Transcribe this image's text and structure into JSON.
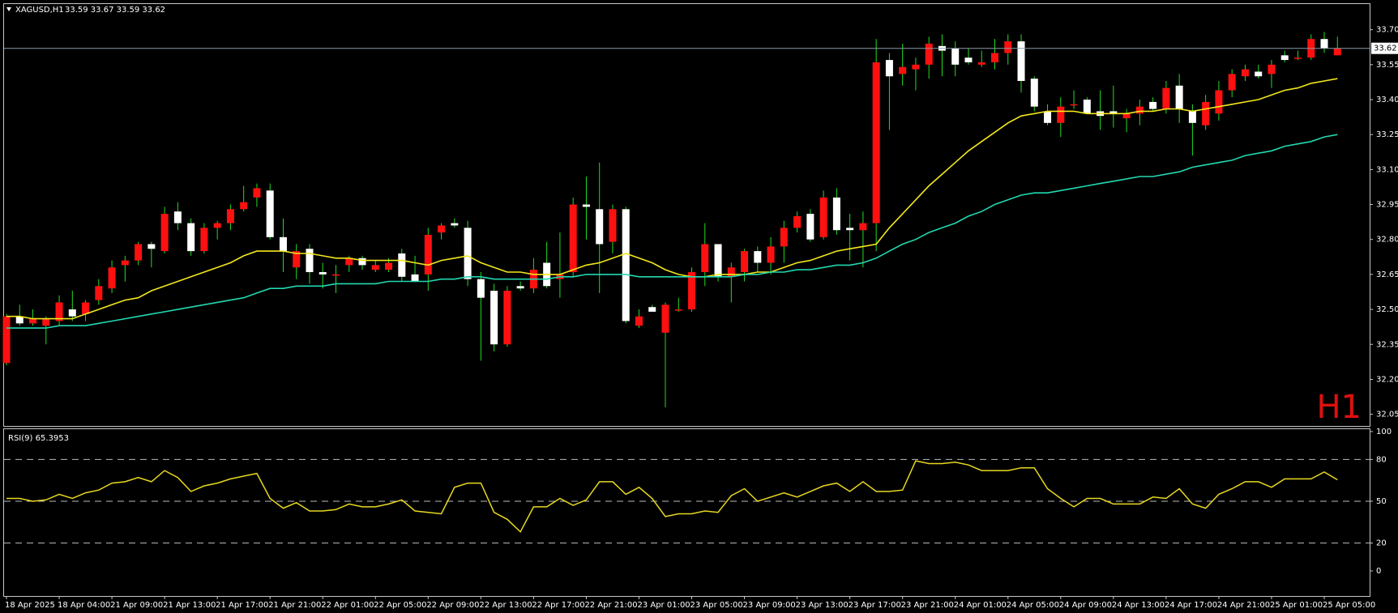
{
  "chart_data": [
    {
      "type": "candlestick",
      "title": "XAGUSD,H1",
      "ohlc": "33.59 33.67 33.59 33.62",
      "watermark": "H1",
      "categories": [
        "18 Apr 2025",
        null,
        null,
        null,
        "18 Apr 04:00",
        null,
        null,
        null,
        "21 Apr 09:00",
        null,
        null,
        null,
        "21 Apr 13:00",
        null,
        null,
        null,
        "21 Apr 17:00",
        null,
        null,
        null,
        "21 Apr 21:00",
        null,
        null,
        null,
        "22 Apr 01:00",
        null,
        null,
        null,
        "22 Apr 05:00",
        null,
        null,
        null,
        "22 Apr 09:00",
        null,
        null,
        null,
        "22 Apr 13:00",
        null,
        null,
        null,
        "22 Apr 17:00",
        null,
        null,
        null,
        "22 Apr 21:00",
        null,
        null,
        null,
        "23 Apr 01:00",
        null,
        null,
        null,
        "23 Apr 05:00",
        null,
        null,
        null,
        "23 Apr 09:00",
        null,
        null,
        null,
        "23 Apr 13:00",
        null,
        null,
        null,
        "23 Apr 17:00",
        null,
        null,
        null,
        "23 Apr 21:00",
        null,
        null,
        null,
        "24 Apr 01:00",
        null,
        null,
        null,
        "24 Apr 05:00",
        null,
        null,
        null,
        "24 Apr 09:00",
        null,
        null,
        null,
        "24 Apr 13:00",
        null,
        null,
        null,
        "24 Apr 17:00",
        null,
        null,
        null,
        "24 Apr 21:00",
        null,
        null,
        null,
        "25 Apr 01:00",
        null,
        null,
        null,
        "25 Apr 05:00",
        null
      ],
      "open": [
        32.27,
        32.47,
        32.44,
        32.43,
        32.45,
        32.5,
        32.48,
        32.54,
        32.59,
        32.69,
        32.71,
        32.78,
        32.75,
        32.92,
        32.87,
        32.75,
        32.85,
        32.87,
        32.93,
        32.98,
        33.01,
        32.81,
        32.68,
        32.76,
        32.66,
        32.65,
        32.69,
        32.72,
        32.67,
        32.67,
        32.74,
        32.65,
        32.65,
        32.83,
        32.87,
        32.85,
        32.63,
        32.58,
        32.35,
        32.6,
        32.59,
        32.7,
        32.63,
        32.66,
        32.95,
        32.93,
        32.79,
        32.93,
        32.43,
        32.51,
        32.4,
        32.5,
        32.5,
        32.66,
        32.78,
        32.64,
        32.66,
        32.75,
        32.7,
        32.77,
        32.85,
        32.91,
        32.81,
        32.98,
        32.85,
        32.84,
        32.87,
        33.57,
        33.51,
        33.53,
        33.55,
        33.63,
        33.62,
        33.58,
        33.55,
        33.56,
        33.6,
        33.65,
        33.49,
        33.35,
        33.3,
        33.38,
        33.4,
        33.35,
        33.35,
        33.32,
        33.34,
        33.39,
        33.36,
        33.46,
        33.35,
        33.29,
        33.34,
        33.44,
        33.5,
        33.52,
        33.51,
        33.59,
        33.58,
        33.58,
        33.66,
        33.59
      ],
      "high": [
        32.48,
        32.52,
        32.5,
        32.47,
        32.56,
        32.58,
        32.54,
        32.63,
        32.71,
        32.73,
        32.79,
        32.79,
        32.94,
        32.96,
        32.89,
        32.87,
        32.88,
        32.95,
        33.03,
        33.04,
        33.04,
        32.89,
        32.78,
        32.78,
        32.7,
        32.69,
        32.73,
        32.73,
        32.71,
        32.72,
        32.76,
        32.73,
        32.85,
        32.87,
        32.89,
        32.88,
        32.66,
        32.61,
        32.6,
        32.62,
        32.72,
        32.79,
        32.83,
        32.98,
        33.07,
        33.13,
        32.95,
        32.94,
        32.5,
        32.52,
        32.53,
        32.55,
        32.68,
        32.87,
        32.78,
        32.7,
        32.76,
        32.77,
        32.81,
        32.88,
        32.92,
        32.93,
        33.01,
        33.02,
        32.91,
        32.92,
        33.66,
        33.6,
        33.64,
        33.58,
        33.67,
        33.68,
        33.65,
        33.62,
        33.61,
        33.66,
        33.68,
        33.68,
        33.5,
        33.38,
        33.41,
        33.44,
        33.41,
        33.44,
        33.46,
        33.36,
        33.4,
        33.41,
        33.48,
        33.51,
        33.38,
        33.42,
        33.48,
        33.53,
        33.55,
        33.55,
        33.57,
        33.61,
        33.61,
        33.68,
        33.69,
        33.67
      ],
      "low": [
        32.26,
        32.43,
        32.43,
        32.35,
        32.43,
        32.45,
        32.45,
        32.52,
        32.57,
        32.62,
        32.69,
        32.68,
        32.74,
        32.84,
        32.73,
        32.74,
        32.8,
        32.84,
        32.92,
        32.94,
        32.8,
        32.66,
        32.63,
        32.61,
        32.59,
        32.57,
        32.66,
        32.67,
        32.66,
        32.66,
        32.62,
        32.62,
        32.58,
        32.8,
        32.85,
        32.6,
        32.28,
        32.32,
        32.34,
        32.58,
        32.57,
        32.59,
        32.55,
        32.64,
        32.8,
        32.57,
        32.74,
        32.44,
        32.42,
        32.49,
        32.08,
        32.49,
        32.49,
        32.6,
        32.62,
        32.53,
        32.62,
        32.66,
        32.65,
        32.7,
        32.83,
        32.79,
        32.8,
        32.82,
        32.71,
        32.68,
        32.75,
        33.27,
        33.46,
        33.44,
        33.49,
        33.5,
        33.5,
        33.55,
        33.54,
        33.53,
        33.55,
        33.43,
        33.35,
        33.29,
        33.24,
        33.36,
        33.34,
        33.27,
        33.28,
        33.26,
        33.29,
        33.35,
        33.34,
        33.3,
        33.16,
        33.27,
        33.31,
        33.41,
        33.48,
        33.49,
        33.45,
        33.56,
        33.57,
        33.57,
        33.6,
        33.59
      ],
      "close": [
        32.47,
        32.44,
        32.46,
        32.46,
        32.53,
        32.47,
        32.53,
        32.6,
        32.68,
        32.71,
        32.78,
        32.76,
        32.91,
        32.87,
        32.75,
        32.85,
        32.87,
        32.93,
        32.96,
        33.02,
        32.81,
        32.75,
        32.75,
        32.66,
        32.65,
        32.65,
        32.72,
        32.69,
        32.69,
        32.7,
        32.64,
        32.62,
        32.82,
        32.86,
        32.86,
        32.63,
        32.55,
        32.35,
        32.58,
        32.59,
        32.67,
        32.6,
        32.65,
        32.95,
        32.94,
        32.78,
        32.93,
        32.45,
        32.47,
        32.49,
        32.52,
        32.5,
        32.66,
        32.78,
        32.64,
        32.68,
        32.75,
        32.7,
        32.77,
        32.85,
        32.9,
        32.8,
        32.98,
        32.84,
        32.84,
        32.87,
        33.56,
        33.5,
        33.54,
        33.55,
        33.64,
        33.61,
        33.55,
        33.56,
        33.56,
        33.6,
        33.65,
        33.48,
        33.37,
        33.3,
        33.37,
        33.38,
        33.34,
        33.33,
        33.34,
        33.34,
        33.37,
        33.36,
        33.45,
        33.36,
        33.3,
        33.39,
        33.44,
        33.51,
        33.53,
        33.5,
        33.55,
        33.57,
        33.58,
        33.66,
        33.62,
        33.62
      ],
      "up_color": "#ff1010",
      "down_color": "#ffffff",
      "wick_color": "#22dd22",
      "lines": [
        {
          "color": "#f2e81c",
          "values": [
            32.47,
            32.47,
            32.46,
            32.46,
            32.46,
            32.46,
            32.48,
            32.5,
            32.52,
            32.54,
            32.55,
            32.58,
            32.6,
            32.62,
            32.64,
            32.66,
            32.68,
            32.7,
            32.73,
            32.75,
            32.75,
            32.75,
            32.74,
            32.74,
            32.73,
            32.72,
            32.72,
            32.71,
            32.71,
            32.71,
            32.71,
            32.7,
            32.69,
            32.71,
            32.72,
            32.73,
            32.7,
            32.68,
            32.66,
            32.66,
            32.65,
            32.65,
            32.65,
            32.67,
            32.69,
            32.7,
            32.72,
            32.74,
            32.72,
            32.7,
            32.67,
            32.65,
            32.64,
            32.64,
            32.65,
            32.65,
            32.65,
            32.66,
            32.66,
            32.68,
            32.7,
            32.71,
            32.73,
            32.75,
            32.76,
            32.77,
            32.78,
            32.85,
            32.91,
            32.97,
            33.03,
            33.08,
            33.13,
            33.18,
            33.22,
            33.26,
            33.3,
            33.33,
            33.34,
            33.35,
            33.35,
            33.35,
            33.34,
            33.34,
            33.34,
            33.34,
            33.35,
            33.35,
            33.36,
            33.36,
            33.35,
            33.36,
            33.37,
            33.38,
            33.39,
            33.4,
            33.42,
            33.44,
            33.45,
            33.47,
            33.48,
            33.49
          ]
        },
        {
          "color": "#22d8b0",
          "values": [
            32.42,
            32.42,
            32.42,
            32.42,
            32.43,
            32.43,
            32.43,
            32.44,
            32.45,
            32.46,
            32.47,
            32.48,
            32.49,
            32.5,
            32.51,
            32.52,
            32.53,
            32.54,
            32.55,
            32.57,
            32.59,
            32.59,
            32.6,
            32.6,
            32.6,
            32.61,
            32.61,
            32.61,
            32.61,
            32.62,
            32.62,
            32.62,
            32.62,
            32.63,
            32.63,
            32.64,
            32.64,
            32.63,
            32.63,
            32.63,
            32.63,
            32.63,
            32.64,
            32.64,
            32.65,
            32.65,
            32.65,
            32.65,
            32.64,
            32.64,
            32.64,
            32.64,
            32.64,
            32.64,
            32.64,
            32.64,
            32.65,
            32.65,
            32.66,
            32.66,
            32.67,
            32.67,
            32.68,
            32.69,
            32.69,
            32.7,
            32.72,
            32.75,
            32.78,
            32.8,
            32.83,
            32.85,
            32.87,
            32.9,
            32.92,
            32.95,
            32.97,
            32.99,
            33.0,
            33.0,
            33.01,
            33.02,
            33.03,
            33.04,
            33.05,
            33.06,
            33.07,
            33.07,
            33.08,
            33.09,
            33.11,
            33.12,
            33.13,
            33.14,
            33.16,
            33.17,
            33.18,
            33.2,
            33.21,
            33.22,
            33.24,
            33.25
          ]
        }
      ],
      "current_price": 33.62,
      "current_color": "#8a9aa8",
      "ylim": [
        32.0,
        33.81
      ],
      "yticks": [
        32.05,
        {
          "value": 32.2,
          "label": "32.20"
        },
        32.35,
        {
          "value": 32.5,
          "label": "32.50"
        },
        32.65,
        {
          "value": 32.8,
          "label": "32.80"
        },
        32.95,
        {
          "value": 33.1,
          "label": "33.10"
        },
        33.25,
        {
          "value": 33.4,
          "label": "33.40"
        },
        33.55,
        {
          "value": 33.7,
          "label": "33.70"
        }
      ]
    },
    {
      "type": "line",
      "title": "RSI(9) 65.3953",
      "color": "#e8d820",
      "values": [
        52,
        52,
        50,
        51,
        55,
        52,
        56,
        58,
        63,
        64,
        67,
        64,
        72,
        67,
        57,
        61,
        63,
        66,
        68,
        70,
        52,
        45,
        49,
        43,
        43,
        44,
        48,
        46,
        46,
        48,
        51,
        43,
        42,
        41,
        60,
        63,
        63,
        42,
        37,
        28,
        46,
        46,
        52,
        47,
        51,
        64,
        64,
        55,
        60,
        52,
        39,
        41,
        41,
        43,
        42,
        54,
        59,
        50,
        53,
        56,
        53,
        57,
        61,
        63,
        57,
        64,
        57,
        57,
        58,
        79,
        77,
        77,
        78,
        76,
        72,
        72,
        72,
        74,
        74,
        59,
        52,
        46,
        52,
        52,
        48,
        48,
        48,
        53,
        52,
        59,
        48,
        45,
        55,
        59,
        64,
        64,
        60,
        66,
        66,
        66,
        71,
        65.3953
      ],
      "ylim": [
        -18,
        101.7
      ],
      "yticks": [
        0,
        20,
        50,
        80,
        100
      ],
      "levels": [
        20,
        50,
        80
      ]
    }
  ]
}
